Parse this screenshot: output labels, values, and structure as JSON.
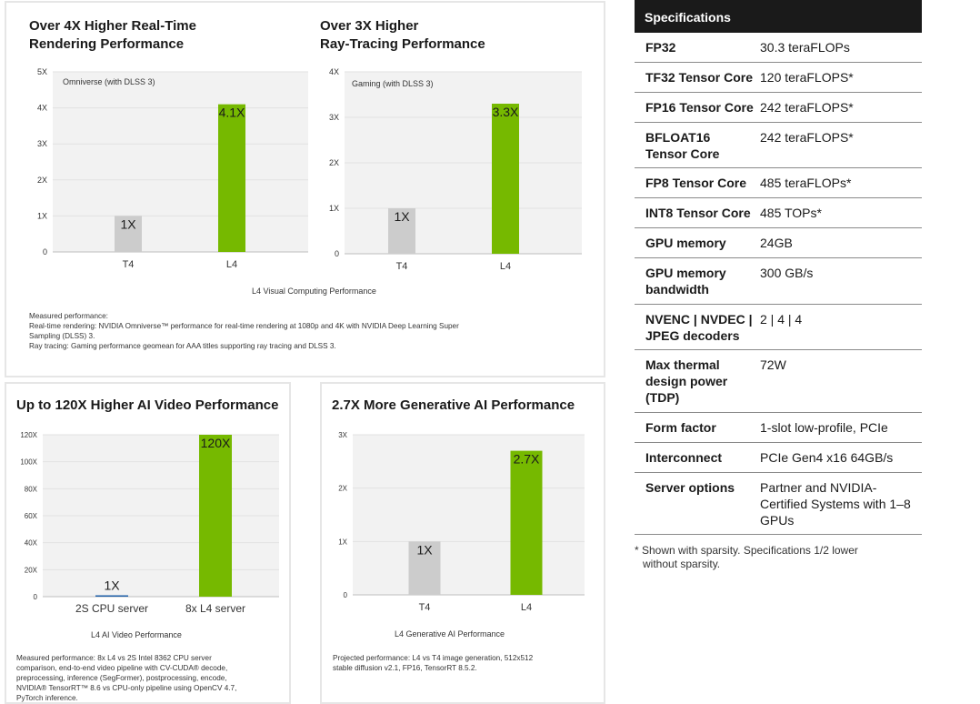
{
  "chart_data": [
    {
      "type": "bar",
      "title_lines": [
        "Over 4X Higher Real-Time",
        "Rendering Performance"
      ],
      "legend_label": "Omniverse (with DLSS 3)",
      "categories": [
        "T4",
        "L4"
      ],
      "values": [
        1,
        4.1
      ],
      "data_labels": [
        "1X",
        "4.1X"
      ],
      "ylim": [
        0,
        5
      ],
      "yticks": [
        0,
        1,
        2,
        3,
        4,
        5
      ],
      "ytick_labels": [
        "0",
        "1X",
        "2X",
        "3X",
        "4X",
        "5X"
      ],
      "colors": [
        "#cccccc",
        "#76b900"
      ]
    },
    {
      "type": "bar",
      "title_lines": [
        "Over 3X Higher",
        "Ray-Tracing Performance"
      ],
      "legend_label": "Gaming (with DLSS 3)",
      "categories": [
        "T4",
        "L4"
      ],
      "values": [
        1,
        3.3
      ],
      "data_labels": [
        "1X",
        "3.3X"
      ],
      "ylim": [
        0,
        4
      ],
      "yticks": [
        0,
        1,
        2,
        3,
        4
      ],
      "ytick_labels": [
        "0",
        "1X",
        "2X",
        "3X",
        "4X"
      ],
      "colors": [
        "#cccccc",
        "#76b900"
      ]
    },
    {
      "type": "bar",
      "title_lines": [
        "Up to 120X Higher AI Video Performance"
      ],
      "legend_label": "",
      "categories": [
        "2S CPU server",
        "8x L4 server"
      ],
      "values": [
        1,
        120
      ],
      "data_labels": [
        "1X",
        "120X"
      ],
      "ylim": [
        0,
        120
      ],
      "yticks": [
        0,
        20,
        40,
        60,
        80,
        100,
        120
      ],
      "ytick_labels": [
        "0",
        "20X",
        "40X",
        "60X",
        "80X",
        "100X",
        "120X"
      ],
      "colors": [
        "#1f5fa8",
        "#76b900"
      ]
    },
    {
      "type": "bar",
      "title_lines": [
        "2.7X More Generative AI Performance"
      ],
      "legend_label": "",
      "categories": [
        "T4",
        "L4"
      ],
      "values": [
        1,
        2.7
      ],
      "data_labels": [
        "1X",
        "2.7X"
      ],
      "ylim": [
        0,
        3
      ],
      "yticks": [
        0,
        1,
        2,
        3
      ],
      "ytick_labels": [
        "0",
        "1X",
        "2X",
        "3X"
      ],
      "colors": [
        "#cccccc",
        "#76b900"
      ]
    }
  ],
  "captions": {
    "top": "L4 Visual Computing Performance",
    "bl": "L4 AI Video Performance",
    "br": "L4 Generative AI Performance"
  },
  "notes": {
    "top": [
      "Measured performance:",
      "Real-time rendering: NVIDIA Omniverse™ performance for real-time rendering at 1080p and 4K with NVIDIA Deep Learning Super",
      "Sampling (DLSS) 3.",
      "Ray tracing: Gaming performance geomean for AAA titles supporting ray tracing and DLSS 3."
    ],
    "bl": [
      "Measured performance: 8x L4 vs 2S Intel 8362 CPU server",
      "comparison, end-to-end video pipeline with CV-CUDA® decode,",
      "preprocessing, inference (SegFormer), postprocessing, encode,",
      "NVIDIA® TensorRT™ 8.6 vs CPU-only pipeline using OpenCV 4.7,",
      "PyTorch inference."
    ],
    "br": [
      "Projected performance: L4 vs T4 image generation, 512x512",
      "stable diffusion v2.1, FP16, TensorRT 8.5.2."
    ]
  },
  "specs": {
    "header": "Specifications",
    "rows": [
      {
        "label": "FP32",
        "value": "30.3 teraFLOPs"
      },
      {
        "label": "TF32 Tensor Core",
        "value": "120 teraFLOPS*"
      },
      {
        "label": "FP16 Tensor Core",
        "value": "242 teraFLOPS*"
      },
      {
        "label": "BFLOAT16 Tensor Core",
        "value": "242 teraFLOPS*"
      },
      {
        "label": "FP8 Tensor Core",
        "value": "485 teraFLOPs*"
      },
      {
        "label": "INT8 Tensor Core",
        "value": "485 TOPs*"
      },
      {
        "label": "GPU memory",
        "value": "24GB"
      },
      {
        "label": "GPU memory bandwidth",
        "value": "300 GB/s"
      },
      {
        "label": "NVENC | NVDEC | JPEG decoders",
        "value": "2 | 4 | 4"
      },
      {
        "label": "Max thermal design power (TDP)",
        "value": "72W"
      },
      {
        "label": "Form factor",
        "value": "1-slot low-profile, PCIe"
      },
      {
        "label": "Interconnect",
        "value": "PCIe Gen4 x16 64GB/s"
      },
      {
        "label": "Server options",
        "value": "Partner and NVIDIA-Certified Systems with 1–8 GPUs"
      }
    ],
    "footnote": [
      "* Shown with sparsity. Specifications 1/2 lower",
      "without sparsity."
    ]
  }
}
